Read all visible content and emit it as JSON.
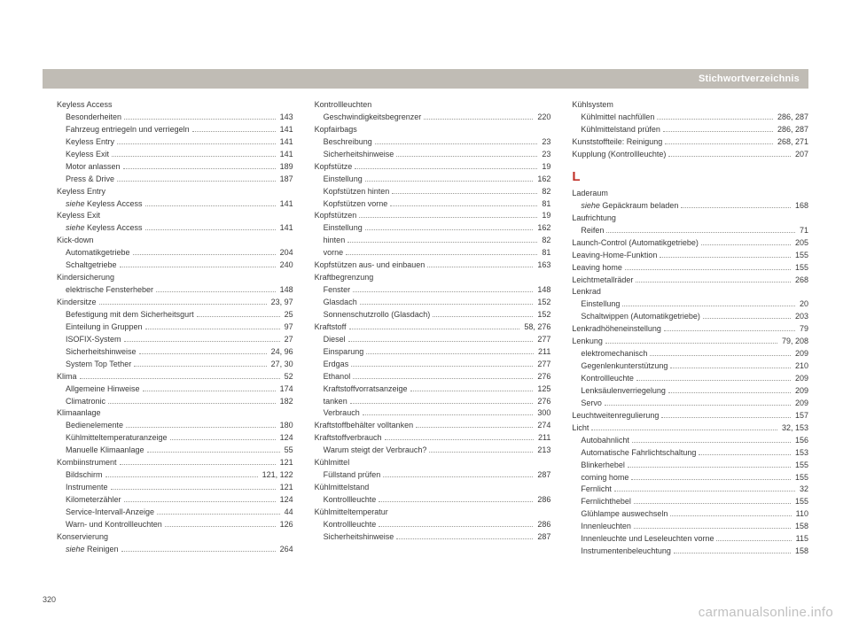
{
  "header": {
    "title": "Stichwortverzeichnis"
  },
  "page_number": "320",
  "watermark": "carmanualsonline.info",
  "section_letter": "L",
  "columns": [
    [
      {
        "t": "head",
        "label": "Keyless Access"
      },
      {
        "t": "sub",
        "label": "Besonderheiten",
        "page": "143"
      },
      {
        "t": "sub",
        "label": "Fahrzeug entriegeln und verriegeln",
        "page": "141"
      },
      {
        "t": "sub",
        "label": "Keyless Entry",
        "page": "141"
      },
      {
        "t": "sub",
        "label": "Keyless Exit",
        "page": "141"
      },
      {
        "t": "sub",
        "label": "Motor anlassen",
        "page": "189"
      },
      {
        "t": "sub",
        "label": "Press & Drive",
        "page": "187"
      },
      {
        "t": "head",
        "label": "Keyless Entry"
      },
      {
        "t": "xref",
        "em": "siehe",
        "label": " Keyless Access",
        "page": "141"
      },
      {
        "t": "head",
        "label": "Keyless Exit"
      },
      {
        "t": "xref",
        "em": "siehe",
        "label": " Keyless Access",
        "page": "141"
      },
      {
        "t": "head",
        "label": "Kick-down"
      },
      {
        "t": "sub",
        "label": "Automatikgetriebe",
        "page": "204"
      },
      {
        "t": "sub",
        "label": "Schaltgetriebe",
        "page": "240"
      },
      {
        "t": "head",
        "label": "Kindersicherung"
      },
      {
        "t": "sub",
        "label": "elektrische Fensterheber",
        "page": "148"
      },
      {
        "t": "main",
        "label": "Kindersitze",
        "page": "23, 97"
      },
      {
        "t": "sub",
        "label": "Befestigung mit dem Sicherheitsgurt",
        "page": "25"
      },
      {
        "t": "sub",
        "label": "Einteilung in Gruppen",
        "page": "97"
      },
      {
        "t": "sub",
        "label": "ISOFIX-System",
        "page": "27"
      },
      {
        "t": "sub",
        "label": "Sicherheitshinweise",
        "page": "24, 96"
      },
      {
        "t": "sub",
        "label": "System Top Tether",
        "page": "27, 30"
      },
      {
        "t": "main",
        "label": "Klima",
        "page": "52"
      },
      {
        "t": "sub",
        "label": "Allgemeine Hinweise",
        "page": "174"
      },
      {
        "t": "sub",
        "label": "Climatronic",
        "page": "182"
      },
      {
        "t": "head",
        "label": "Klimaanlage"
      },
      {
        "t": "sub",
        "label": "Bedienelemente",
        "page": "180"
      },
      {
        "t": "sub",
        "label": "Kühlmitteltemperaturanzeige",
        "page": "124"
      },
      {
        "t": "sub",
        "label": "Manuelle Klimaanlage",
        "page": "55"
      },
      {
        "t": "main",
        "label": "Kombiinstrument",
        "page": "121"
      },
      {
        "t": "sub",
        "label": "Bildschirm",
        "page": "121, 122"
      },
      {
        "t": "sub",
        "label": "Instrumente",
        "page": "121"
      },
      {
        "t": "sub",
        "label": "Kilometerzähler",
        "page": "124"
      },
      {
        "t": "sub",
        "label": "Service-Intervall-Anzeige",
        "page": "44"
      },
      {
        "t": "sub",
        "label": "Warn- und Kontrollleuchten",
        "page": "126"
      },
      {
        "t": "head",
        "label": "Konservierung"
      },
      {
        "t": "xref",
        "em": "siehe",
        "label": " Reinigen",
        "page": "264"
      }
    ],
    [
      {
        "t": "head",
        "label": "Kontrollleuchten"
      },
      {
        "t": "sub",
        "label": "Geschwindigkeitsbegrenzer",
        "page": "220"
      },
      {
        "t": "head",
        "label": "Kopfairbags"
      },
      {
        "t": "sub",
        "label": "Beschreibung",
        "page": "23"
      },
      {
        "t": "sub",
        "label": "Sicherheitshinweise",
        "page": "23"
      },
      {
        "t": "main",
        "label": "Kopfstütze",
        "page": "19"
      },
      {
        "t": "sub",
        "label": "Einstellung",
        "page": "162"
      },
      {
        "t": "sub",
        "label": "Kopfstützen hinten",
        "page": "82"
      },
      {
        "t": "sub",
        "label": "Kopfstützen vorne",
        "page": "81"
      },
      {
        "t": "main",
        "label": "Kopfstützen",
        "page": "19"
      },
      {
        "t": "sub",
        "label": "Einstellung",
        "page": "162"
      },
      {
        "t": "sub",
        "label": "hinten",
        "page": "82"
      },
      {
        "t": "sub",
        "label": "vorne",
        "page": "81"
      },
      {
        "t": "main",
        "label": "Kopfstützen aus- und einbauen",
        "page": "163"
      },
      {
        "t": "head",
        "label": "Kraftbegrenzung"
      },
      {
        "t": "sub",
        "label": "Fenster",
        "page": "148"
      },
      {
        "t": "sub",
        "label": "Glasdach",
        "page": "152"
      },
      {
        "t": "sub",
        "label": "Sonnenschutzrollo (Glasdach)",
        "page": "152"
      },
      {
        "t": "main",
        "label": "Kraftstoff",
        "page": "58, 276"
      },
      {
        "t": "sub",
        "label": "Diesel",
        "page": "277"
      },
      {
        "t": "sub",
        "label": "Einsparung",
        "page": "211"
      },
      {
        "t": "sub",
        "label": "Erdgas",
        "page": "277"
      },
      {
        "t": "sub",
        "label": "Ethanol",
        "page": "276"
      },
      {
        "t": "sub",
        "label": "Kraftstoffvorratsanzeige",
        "page": "125"
      },
      {
        "t": "sub",
        "label": "tanken",
        "page": "276"
      },
      {
        "t": "sub",
        "label": "Verbrauch",
        "page": "300"
      },
      {
        "t": "main",
        "label": "Kraftstoffbehälter volltanken",
        "page": "274"
      },
      {
        "t": "main",
        "label": "Kraftstoffverbrauch",
        "page": "211"
      },
      {
        "t": "sub",
        "label": "Warum steigt der Verbrauch?",
        "page": "213"
      },
      {
        "t": "head",
        "label": "Kühlmittel"
      },
      {
        "t": "sub",
        "label": "Füllstand prüfen",
        "page": "287"
      },
      {
        "t": "head",
        "label": "Kühlmittelstand"
      },
      {
        "t": "sub",
        "label": "Kontrollleuchte",
        "page": "286"
      },
      {
        "t": "head",
        "label": "Kühlmitteltemperatur"
      },
      {
        "t": "sub",
        "label": "Kontrollleuchte",
        "page": "286"
      },
      {
        "t": "sub",
        "label": "Sicherheitshinweise",
        "page": "287"
      }
    ],
    [
      {
        "t": "head",
        "label": "Kühlsystem"
      },
      {
        "t": "sub",
        "label": "Kühlmittel nachfüllen",
        "page": "286, 287"
      },
      {
        "t": "sub",
        "label": "Kühlmittelstand prüfen",
        "page": "286, 287"
      },
      {
        "t": "main",
        "label": "Kunststoffteile: Reinigung",
        "page": "268, 271"
      },
      {
        "t": "main",
        "label": "Kupplung (Kontrollleuchte)",
        "page": "207"
      },
      {
        "t": "letter"
      },
      {
        "t": "head",
        "label": "Laderaum"
      },
      {
        "t": "xref",
        "em": "siehe",
        "label": " Gepäckraum beladen",
        "page": "168"
      },
      {
        "t": "head",
        "label": "Laufrichtung"
      },
      {
        "t": "sub",
        "label": "Reifen",
        "page": "71"
      },
      {
        "t": "main",
        "label": "Launch-Control (Automatikgetriebe)",
        "page": "205"
      },
      {
        "t": "main",
        "label": "Leaving-Home-Funktion",
        "page": "155"
      },
      {
        "t": "main",
        "label": "Leaving home",
        "page": "155"
      },
      {
        "t": "main",
        "label": "Leichtmetallräder",
        "page": "268"
      },
      {
        "t": "head",
        "label": "Lenkrad"
      },
      {
        "t": "sub",
        "label": "Einstellung",
        "page": "20"
      },
      {
        "t": "sub",
        "label": "Schaltwippen (Automatikgetriebe)",
        "page": "203"
      },
      {
        "t": "main",
        "label": "Lenkradhöheneinstellung",
        "page": "79"
      },
      {
        "t": "main",
        "label": "Lenkung",
        "page": "79, 208"
      },
      {
        "t": "sub",
        "label": "elektromechanisch",
        "page": "209"
      },
      {
        "t": "sub",
        "label": "Gegenlenkunterstützung",
        "page": "210"
      },
      {
        "t": "sub",
        "label": "Kontrollleuchte",
        "page": "209"
      },
      {
        "t": "sub",
        "label": "Lenksäulenverriegelung",
        "page": "209"
      },
      {
        "t": "sub",
        "label": "Servo",
        "page": "209"
      },
      {
        "t": "main",
        "label": "Leuchtweitenregulierung",
        "page": "157"
      },
      {
        "t": "main",
        "label": "Licht",
        "page": "32, 153"
      },
      {
        "t": "sub",
        "label": "Autobahnlicht",
        "page": "156"
      },
      {
        "t": "sub",
        "label": "Automatische Fahrlichtschaltung",
        "page": "153"
      },
      {
        "t": "sub",
        "label": "Blinkerhebel",
        "page": "155"
      },
      {
        "t": "sub",
        "label": "coming home",
        "page": "155"
      },
      {
        "t": "sub",
        "label": "Fernlicht",
        "page": "32"
      },
      {
        "t": "sub",
        "label": "Fernlichthebel",
        "page": "155"
      },
      {
        "t": "sub",
        "label": "Glühlampe auswechseln",
        "page": "110"
      },
      {
        "t": "sub",
        "label": "Innenleuchten",
        "page": "158"
      },
      {
        "t": "sub",
        "label": "Innenleuchte und Leseleuchten vorne",
        "page": "115"
      },
      {
        "t": "sub",
        "label": "Instrumentenbeleuchtung",
        "page": "158"
      }
    ]
  ]
}
